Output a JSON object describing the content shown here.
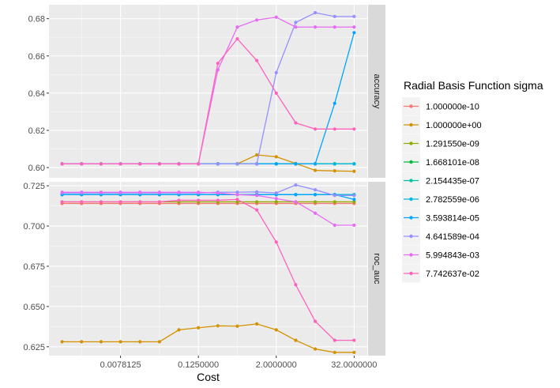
{
  "chart_data": {
    "type": "line",
    "xlabel": "Cost",
    "x_scale": "log2",
    "x": [
      0.0009765625,
      0.001953125,
      0.00390625,
      0.0078125,
      0.015625,
      0.03125,
      0.0625,
      0.125,
      0.25,
      0.5,
      1,
      2,
      4,
      8,
      16,
      32
    ],
    "x_ticks": [
      0.0078125,
      0.125,
      2,
      32
    ],
    "x_tick_labels": [
      "0.0078125",
      "0.1250000",
      "2.0000000",
      "32.0000000"
    ],
    "legend": {
      "title": "Radial Basis Function sigma",
      "placement": "right"
    },
    "series": [
      {
        "name": "1.000000e-10",
        "color": "#F8766D"
      },
      {
        "name": "1.000000e+00",
        "color": "#D39200"
      },
      {
        "name": "1.291550e-09",
        "color": "#93AA00"
      },
      {
        "name": "1.668101e-08",
        "color": "#00BA38"
      },
      {
        "name": "2.154435e-07",
        "color": "#00C19F"
      },
      {
        "name": "2.782559e-06",
        "color": "#00B9E3"
      },
      {
        "name": "3.593814e-05",
        "color": "#00A5FF"
      },
      {
        "name": "4.641589e-04",
        "color": "#9590FF"
      },
      {
        "name": "5.994843e-03",
        "color": "#E76BF3"
      },
      {
        "name": "7.742637e-02",
        "color": "#FF62BC"
      }
    ],
    "panels": [
      {
        "label": "accuracy",
        "ylim": [
          0.5945,
          0.6875
        ],
        "y_ticks": [
          0.6,
          0.62,
          0.64,
          0.66,
          0.68
        ],
        "y_tick_labels": [
          "0.60",
          "0.62",
          "0.64",
          "0.66",
          "0.68"
        ],
        "values": [
          [
            0.602,
            0.602,
            0.602,
            0.602,
            0.602,
            0.602,
            0.602,
            0.602,
            0.602,
            0.602,
            0.602,
            0.602,
            0.602,
            0.602,
            0.602,
            0.602
          ],
          [
            0.602,
            0.602,
            0.602,
            0.602,
            0.602,
            0.602,
            0.602,
            0.602,
            0.602,
            0.602,
            0.6068,
            0.6058,
            0.6022,
            0.5985,
            0.5982,
            0.598
          ],
          [
            0.602,
            0.602,
            0.602,
            0.602,
            0.602,
            0.602,
            0.602,
            0.602,
            0.602,
            0.602,
            0.602,
            0.602,
            0.602,
            0.602,
            0.602,
            0.602
          ],
          [
            0.602,
            0.602,
            0.602,
            0.602,
            0.602,
            0.602,
            0.602,
            0.602,
            0.602,
            0.602,
            0.602,
            0.602,
            0.602,
            0.602,
            0.602,
            0.602
          ],
          [
            0.602,
            0.602,
            0.602,
            0.602,
            0.602,
            0.602,
            0.602,
            0.602,
            0.602,
            0.602,
            0.602,
            0.602,
            0.602,
            0.602,
            0.602,
            0.602
          ],
          [
            0.602,
            0.602,
            0.602,
            0.602,
            0.602,
            0.602,
            0.602,
            0.602,
            0.602,
            0.602,
            0.602,
            0.602,
            0.602,
            0.602,
            0.602,
            0.602
          ],
          [
            0.602,
            0.602,
            0.602,
            0.602,
            0.602,
            0.602,
            0.602,
            0.602,
            0.602,
            0.602,
            0.602,
            0.602,
            0.602,
            0.602,
            0.6345,
            0.6725
          ],
          [
            0.602,
            0.602,
            0.602,
            0.602,
            0.602,
            0.602,
            0.602,
            0.602,
            0.602,
            0.602,
            0.602,
            0.651,
            0.678,
            0.6832,
            0.6812,
            0.6812
          ],
          [
            0.602,
            0.602,
            0.602,
            0.602,
            0.602,
            0.602,
            0.602,
            0.602,
            0.6525,
            0.6755,
            0.6793,
            0.6808,
            0.6755,
            0.6755,
            0.6755,
            0.6755
          ],
          [
            0.602,
            0.602,
            0.602,
            0.602,
            0.602,
            0.602,
            0.602,
            0.602,
            0.656,
            0.6692,
            0.6575,
            0.64,
            0.624,
            0.6207,
            0.6207,
            0.6207
          ]
        ]
      },
      {
        "label": "roc_auc",
        "ylim": [
          0.6195,
          0.7275
        ],
        "y_ticks": [
          0.625,
          0.65,
          0.675,
          0.7,
          0.725
        ],
        "y_tick_labels": [
          "0.625",
          "0.650",
          "0.675",
          "0.700",
          "0.725"
        ],
        "values": [
          [
            0.714,
            0.714,
            0.714,
            0.714,
            0.714,
            0.714,
            0.714,
            0.714,
            0.714,
            0.714,
            0.714,
            0.714,
            0.714,
            0.714,
            0.714,
            0.714
          ],
          [
            0.6281,
            0.6281,
            0.6281,
            0.6281,
            0.6281,
            0.6281,
            0.6355,
            0.6368,
            0.638,
            0.6378,
            0.6392,
            0.6355,
            0.629,
            0.6236,
            0.6215,
            0.6215
          ],
          [
            0.715,
            0.715,
            0.715,
            0.715,
            0.715,
            0.715,
            0.715,
            0.715,
            0.715,
            0.715,
            0.715,
            0.715,
            0.715,
            0.715,
            0.715,
            0.715
          ],
          [
            0.7195,
            0.7195,
            0.7195,
            0.7195,
            0.7195,
            0.7195,
            0.7195,
            0.7195,
            0.7195,
            0.7195,
            0.7195,
            0.7195,
            0.7195,
            0.7195,
            0.7195,
            0.7195
          ],
          [
            0.7195,
            0.7195,
            0.7195,
            0.7195,
            0.7195,
            0.7195,
            0.7195,
            0.7195,
            0.7195,
            0.7195,
            0.7195,
            0.7195,
            0.7195,
            0.7195,
            0.7195,
            0.7195
          ],
          [
            0.7195,
            0.7195,
            0.7195,
            0.7195,
            0.7195,
            0.7195,
            0.7195,
            0.7195,
            0.7195,
            0.7195,
            0.7195,
            0.7195,
            0.7195,
            0.7195,
            0.7195,
            0.7195
          ],
          [
            0.7195,
            0.7195,
            0.7195,
            0.7195,
            0.7195,
            0.7195,
            0.7195,
            0.7195,
            0.7195,
            0.7195,
            0.7195,
            0.7195,
            0.7195,
            0.7195,
            0.7195,
            0.7165
          ],
          [
            0.7205,
            0.7205,
            0.7205,
            0.7205,
            0.7205,
            0.7205,
            0.7205,
            0.7205,
            0.721,
            0.721,
            0.7212,
            0.7205,
            0.7255,
            0.7225,
            0.719,
            0.719
          ],
          [
            0.721,
            0.721,
            0.721,
            0.721,
            0.721,
            0.721,
            0.721,
            0.721,
            0.7205,
            0.7195,
            0.719,
            0.717,
            0.715,
            0.708,
            0.7005,
            0.7005
          ],
          [
            0.715,
            0.715,
            0.715,
            0.715,
            0.715,
            0.715,
            0.716,
            0.716,
            0.716,
            0.7165,
            0.71,
            0.69,
            0.6635,
            0.6408,
            0.629,
            0.629
          ]
        ]
      }
    ]
  }
}
